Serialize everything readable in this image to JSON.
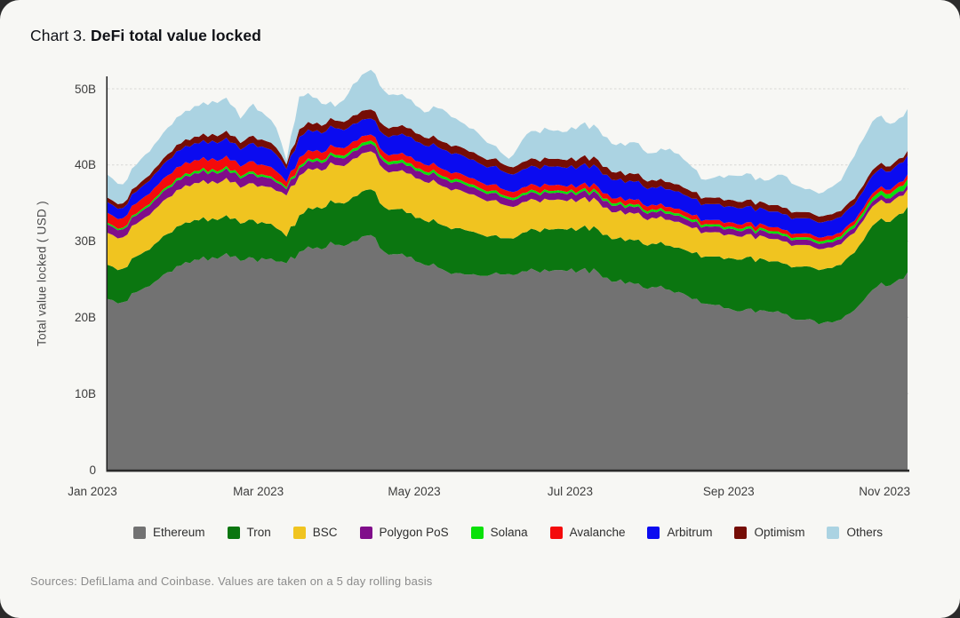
{
  "page": {
    "background": "#2b2b2b",
    "card_background": "#f7f7f4"
  },
  "header": {
    "title_prefix": "Chart 3.",
    "title_main": "DeFi total value locked"
  },
  "footer": {
    "source_note": "Sources: DefiLlama and Coinbase. Values are taken on a 5 day rolling basis"
  },
  "chart_data": {
    "type": "area",
    "stacked": true,
    "title": "Chart 3. DeFi total value locked",
    "xlabel": "",
    "ylabel": "Total value locked ( USD )",
    "unit": "billion USD",
    "ylim": [
      0,
      50
    ],
    "grid": "horizontal",
    "legend_position": "bottom",
    "yticks": [
      {
        "value": 0,
        "label": "0"
      },
      {
        "value": 10,
        "label": "10B"
      },
      {
        "value": 20,
        "label": "20B"
      },
      {
        "value": 30,
        "label": "30B"
      },
      {
        "value": 40,
        "label": "40B"
      },
      {
        "value": 50,
        "label": "50B"
      }
    ],
    "xticks": [
      {
        "date": "2023-01-01",
        "label": "Jan 2023"
      },
      {
        "date": "2023-03-01",
        "label": "Mar 2023"
      },
      {
        "date": "2023-05-01",
        "label": "May 2023"
      },
      {
        "date": "2023-07-01",
        "label": "Jul 2023"
      },
      {
        "date": "2023-09-01",
        "label": "Sep 2023"
      },
      {
        "date": "2023-11-01",
        "label": "Nov 2023"
      }
    ],
    "x": [
      "2023-01-01",
      "2023-01-07",
      "2023-01-14",
      "2023-01-21",
      "2023-01-28",
      "2023-02-04",
      "2023-02-11",
      "2023-02-15",
      "2023-02-18",
      "2023-02-22",
      "2023-02-27",
      "2023-03-04",
      "2023-03-08",
      "2023-03-12",
      "2023-03-17",
      "2023-03-24",
      "2023-03-31",
      "2023-04-07",
      "2023-04-14",
      "2023-04-21",
      "2023-04-28",
      "2023-05-05",
      "2023-05-12",
      "2023-05-19",
      "2023-05-26",
      "2023-06-02",
      "2023-06-07",
      "2023-06-14",
      "2023-06-21",
      "2023-06-28",
      "2023-07-05",
      "2023-07-12",
      "2023-07-19",
      "2023-07-26",
      "2023-08-02",
      "2023-08-09",
      "2023-08-16",
      "2023-08-23",
      "2023-09-01",
      "2023-09-08",
      "2023-09-15",
      "2023-09-22",
      "2023-10-01",
      "2023-10-08",
      "2023-10-15",
      "2023-10-22",
      "2023-10-29",
      "2023-11-05",
      "2023-11-10"
    ],
    "series": [
      {
        "name": "Ethereum",
        "color": "#727272",
        "values": [
          22.4,
          22.0,
          23.6,
          25.0,
          26.7,
          27.6,
          27.9,
          28.1,
          27.9,
          27.4,
          27.8,
          27.6,
          27.3,
          27.1,
          28.6,
          29.2,
          29.5,
          30.0,
          30.8,
          28.2,
          27.9,
          26.9,
          26.3,
          25.8,
          25.5,
          25.9,
          25.7,
          26.0,
          26.3,
          26.2,
          26.2,
          25.9,
          24.7,
          24.4,
          24.0,
          23.6,
          22.8,
          21.8,
          21.2,
          21.1,
          20.9,
          20.5,
          19.7,
          19.3,
          19.7,
          21.6,
          24.0,
          24.6,
          25.9
        ]
      },
      {
        "name": "Tron",
        "color": "#0b7610",
        "values": [
          4.5,
          4.4,
          4.7,
          5.0,
          5.2,
          5.2,
          5.1,
          5.0,
          5.0,
          4.9,
          5.0,
          4.7,
          4.4,
          3.5,
          4.8,
          5.3,
          5.5,
          5.8,
          6.0,
          5.9,
          5.8,
          5.8,
          5.8,
          5.9,
          5.5,
          4.9,
          4.7,
          5.2,
          5.4,
          5.4,
          5.5,
          5.6,
          5.6,
          5.7,
          5.7,
          5.8,
          5.9,
          6.2,
          6.6,
          6.8,
          6.7,
          6.6,
          7.0,
          7.0,
          7.2,
          7.8,
          8.5,
          8.5,
          8.6
        ]
      },
      {
        "name": "BSC",
        "color": "#f0c420",
        "values": [
          4.2,
          4.1,
          4.4,
          4.6,
          4.8,
          4.85,
          4.9,
          4.8,
          4.8,
          4.7,
          4.8,
          4.85,
          4.9,
          5.4,
          5.2,
          5.1,
          5.0,
          5.0,
          5.0,
          4.9,
          5.2,
          5.1,
          5.1,
          5.0,
          4.8,
          4.6,
          4.2,
          4.0,
          3.9,
          3.8,
          3.8,
          3.7,
          3.5,
          3.5,
          3.4,
          3.4,
          3.3,
          3.2,
          3.1,
          3.0,
          3.0,
          2.9,
          2.8,
          2.7,
          2.7,
          2.6,
          2.5,
          2.4,
          2.3
        ]
      },
      {
        "name": "Polygon PoS",
        "color": "#800d8a",
        "values": [
          1.1,
          1.05,
          1.15,
          1.2,
          1.25,
          1.28,
          1.3,
          1.25,
          1.25,
          1.2,
          1.25,
          1.2,
          1.1,
          0.8,
          1.0,
          1.0,
          1.0,
          1.0,
          1.0,
          1.0,
          1.0,
          1.0,
          1.0,
          1.0,
          0.95,
          0.95,
          0.9,
          0.9,
          0.9,
          0.9,
          0.9,
          0.9,
          0.85,
          0.85,
          0.8,
          0.8,
          0.8,
          0.75,
          0.75,
          0.72,
          0.72,
          0.7,
          0.7,
          0.68,
          0.68,
          0.65,
          0.65,
          0.62,
          0.6
        ]
      },
      {
        "name": "Solana",
        "color": "#09e109",
        "values": [
          0.21,
          0.21,
          0.25,
          0.28,
          0.3,
          0.3,
          0.3,
          0.3,
          0.3,
          0.28,
          0.3,
          0.28,
          0.27,
          0.25,
          0.3,
          0.32,
          0.33,
          0.35,
          0.4,
          0.38,
          0.37,
          0.35,
          0.35,
          0.34,
          0.33,
          0.32,
          0.3,
          0.3,
          0.3,
          0.3,
          0.3,
          0.3,
          0.3,
          0.3,
          0.3,
          0.3,
          0.3,
          0.3,
          0.3,
          0.3,
          0.3,
          0.3,
          0.32,
          0.33,
          0.35,
          0.45,
          0.55,
          0.6,
          0.75
        ]
      },
      {
        "name": "Avalanche",
        "color": "#f40b0b",
        "values": [
          1.3,
          1.25,
          1.35,
          1.4,
          1.45,
          1.42,
          1.4,
          1.35,
          1.35,
          1.3,
          1.35,
          1.28,
          1.2,
          0.7,
          1.1,
          1.05,
          1.0,
          0.95,
          0.8,
          0.85,
          0.9,
          0.9,
          0.9,
          0.85,
          0.8,
          0.8,
          0.75,
          0.75,
          0.75,
          0.7,
          0.7,
          0.7,
          0.65,
          0.65,
          0.6,
          0.6,
          0.6,
          0.55,
          0.55,
          0.55,
          0.52,
          0.52,
          0.5,
          0.5,
          0.5,
          0.5,
          0.55,
          0.55,
          0.6
        ]
      },
      {
        "name": "Arbitrum",
        "color": "#0b0bf0",
        "values": [
          1.4,
          1.35,
          1.6,
          1.8,
          2.1,
          2.2,
          2.3,
          2.4,
          2.35,
          2.2,
          2.4,
          2.3,
          2.2,
          1.7,
          2.7,
          2.6,
          2.5,
          2.3,
          2.1,
          2.4,
          2.6,
          2.5,
          2.6,
          2.5,
          2.4,
          2.4,
          2.3,
          2.4,
          2.45,
          2.4,
          2.5,
          2.5,
          2.4,
          2.4,
          2.3,
          2.3,
          2.2,
          2.1,
          2.1,
          2.1,
          2.05,
          2.05,
          2.0,
          2.0,
          2.05,
          2.2,
          2.4,
          2.45,
          2.5
        ]
      },
      {
        "name": "Optimism",
        "color": "#750d06",
        "values": [
          0.6,
          0.6,
          0.7,
          0.75,
          0.85,
          0.88,
          0.9,
          0.95,
          0.92,
          0.9,
          0.95,
          0.92,
          0.9,
          0.6,
          1.0,
          1.0,
          1.0,
          1.1,
          1.2,
          1.15,
          1.1,
          1.05,
          1.0,
          1.0,
          1.0,
          1.0,
          0.95,
          1.0,
          1.0,
          1.0,
          1.05,
          1.05,
          1.0,
          1.0,
          0.95,
          0.95,
          0.9,
          0.85,
          0.85,
          0.85,
          0.85,
          0.85,
          0.8,
          0.8,
          0.8,
          0.75,
          0.7,
          0.65,
          0.6
        ]
      },
      {
        "name": "Others",
        "color": "#abd3e2",
        "values": [
          3.0,
          2.5,
          3.0,
          3.3,
          3.6,
          4.0,
          4.3,
          4.45,
          4.1,
          3.2,
          4.2,
          3.3,
          2.6,
          0.55,
          4.3,
          3.2,
          1.8,
          4.1,
          5.2,
          4.4,
          3.9,
          3.3,
          4.3,
          3.3,
          2.9,
          1.6,
          1.0,
          3.5,
          3.9,
          3.6,
          4.3,
          4.1,
          3.6,
          4.2,
          3.5,
          4.4,
          3.5,
          2.3,
          3.2,
          3.5,
          2.9,
          4.3,
          3.0,
          3.1,
          4.0,
          6.0,
          6.4,
          5.2,
          5.5
        ]
      }
    ]
  }
}
